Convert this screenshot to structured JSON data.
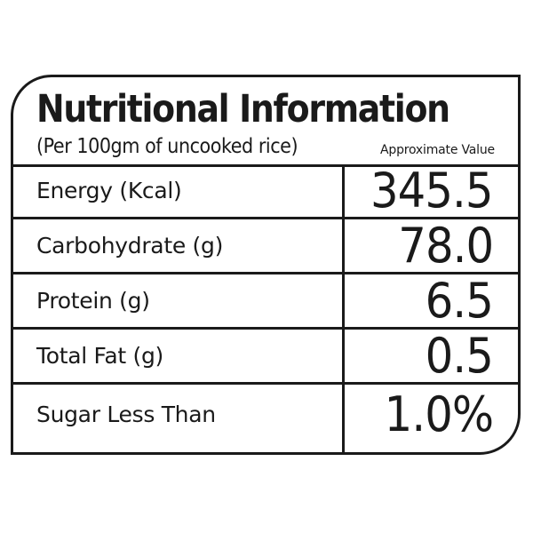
{
  "header": {
    "title": "Nutritional Information",
    "subtitle": "(Per 100gm of uncooked rice)",
    "note": "Approximate Value"
  },
  "rows": [
    {
      "label": "Energy (Kcal)",
      "value": "345.5"
    },
    {
      "label": "Carbohydrate (g)",
      "value": "78.0"
    },
    {
      "label": "Protein (g)",
      "value": "6.5"
    },
    {
      "label": "Total Fat (g)",
      "value": "0.5"
    },
    {
      "label": "Sugar Less Than",
      "value": "1.0%"
    }
  ]
}
